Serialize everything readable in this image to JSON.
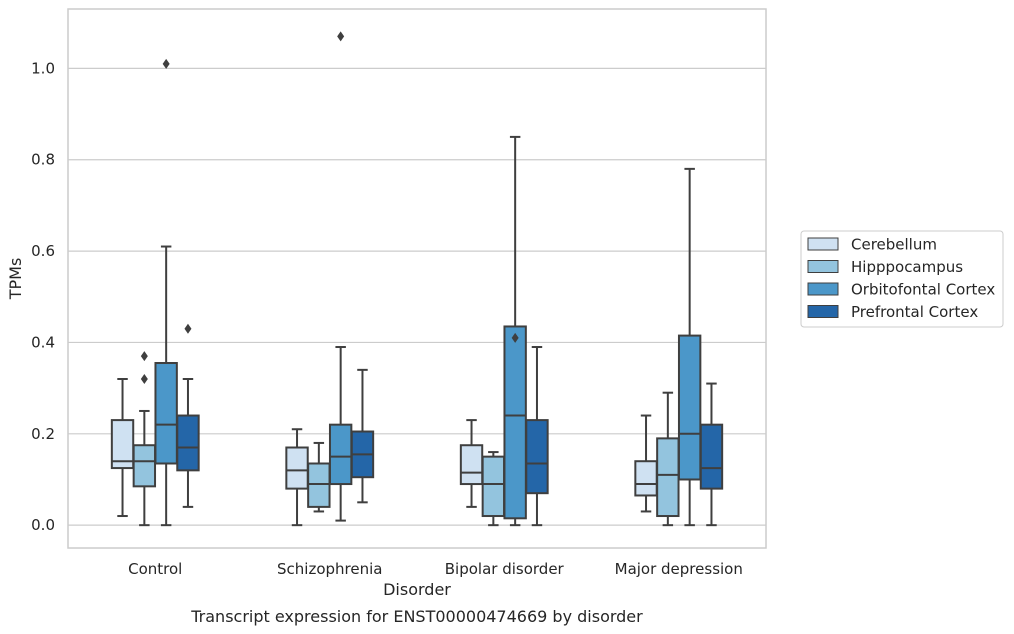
{
  "chart_data": {
    "type": "box",
    "caption": "Transcript expression for ENST00000474669 by disorder",
    "xlabel": "Disorder",
    "ylabel": "TPMs",
    "ylim": [
      -0.05,
      1.13
    ],
    "yticks": [
      0.0,
      0.2,
      0.4,
      0.6,
      0.8,
      1.0
    ],
    "ytick_labels": [
      "0.0",
      "0.2",
      "0.4",
      "0.6",
      "0.8",
      "1.0"
    ],
    "grid": "horizontal",
    "legend_position": "right",
    "categories": [
      "Control",
      "Schizophrenia",
      "Bipolar disorder",
      "Major depression"
    ],
    "series": [
      {
        "name": "Cerebellum",
        "color": "#cfe1f2",
        "boxes": [
          {
            "whislo": 0.02,
            "q1": 0.125,
            "med": 0.14,
            "q3": 0.23,
            "whishi": 0.32,
            "fliers": []
          },
          {
            "whislo": 0.0,
            "q1": 0.08,
            "med": 0.12,
            "q3": 0.17,
            "whishi": 0.21,
            "fliers": []
          },
          {
            "whislo": 0.04,
            "q1": 0.09,
            "med": 0.115,
            "q3": 0.175,
            "whishi": 0.23,
            "fliers": []
          },
          {
            "whislo": 0.03,
            "q1": 0.065,
            "med": 0.09,
            "q3": 0.14,
            "whishi": 0.24,
            "fliers": []
          }
        ]
      },
      {
        "name": "Hipppocampus",
        "color": "#93c4de",
        "boxes": [
          {
            "whislo": 0.0,
            "q1": 0.085,
            "med": 0.14,
            "q3": 0.175,
            "whishi": 0.25,
            "fliers": [
              0.32,
              0.37
            ]
          },
          {
            "whislo": 0.03,
            "q1": 0.04,
            "med": 0.09,
            "q3": 0.135,
            "whishi": 0.18,
            "fliers": []
          },
          {
            "whislo": 0.0,
            "q1": 0.02,
            "med": 0.09,
            "q3": 0.15,
            "whishi": 0.16,
            "fliers": []
          },
          {
            "whislo": 0.0,
            "q1": 0.02,
            "med": 0.11,
            "q3": 0.19,
            "whishi": 0.29,
            "fliers": []
          }
        ]
      },
      {
        "name": "Orbitofontal Cortex",
        "color": "#4b97c9",
        "boxes": [
          {
            "whislo": 0.0,
            "q1": 0.135,
            "med": 0.22,
            "q3": 0.355,
            "whishi": 0.61,
            "fliers": [
              1.01
            ]
          },
          {
            "whislo": 0.01,
            "q1": 0.09,
            "med": 0.15,
            "q3": 0.22,
            "whishi": 0.39,
            "fliers": [
              1.07
            ]
          },
          {
            "whislo": 0.0,
            "q1": 0.015,
            "med": 0.24,
            "q3": 0.435,
            "whishi": 0.85,
            "fliers": [
              0.41
            ]
          },
          {
            "whislo": 0.0,
            "q1": 0.1,
            "med": 0.2,
            "q3": 0.415,
            "whishi": 0.78,
            "fliers": []
          }
        ]
      },
      {
        "name": "Prefrontal Cortex",
        "color": "#2466a8",
        "boxes": [
          {
            "whislo": 0.04,
            "q1": 0.12,
            "med": 0.17,
            "q3": 0.24,
            "whishi": 0.32,
            "fliers": [
              0.43
            ]
          },
          {
            "whislo": 0.05,
            "q1": 0.105,
            "med": 0.155,
            "q3": 0.205,
            "whishi": 0.34,
            "fliers": []
          },
          {
            "whislo": 0.0,
            "q1": 0.07,
            "med": 0.135,
            "q3": 0.23,
            "whishi": 0.39,
            "fliers": []
          },
          {
            "whislo": 0.0,
            "q1": 0.08,
            "med": 0.125,
            "q3": 0.22,
            "whishi": 0.31,
            "fliers": []
          }
        ]
      }
    ]
  }
}
